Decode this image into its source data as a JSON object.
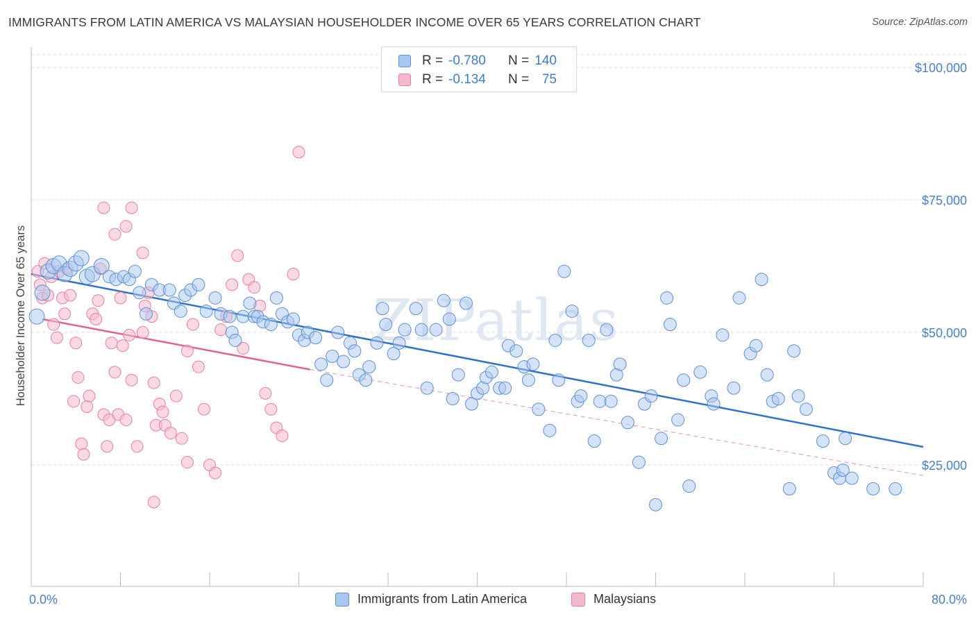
{
  "title": "IMMIGRANTS FROM LATIN AMERICA VS MALAYSIAN HOUSEHOLDER INCOME OVER 65 YEARS CORRELATION CHART",
  "source": "Source: ZipAtlas.com",
  "watermark": "ZIPatlas",
  "colors": {
    "blue_fill": "#a9c8f0",
    "blue_stroke": "#5b8fd6",
    "blue_line": "#2f6fcf",
    "pink_fill": "#f6b9cb",
    "pink_stroke": "#e87fa0",
    "pink_line": "#e0628d",
    "grid": "#dcdcdc",
    "tick_label": "#4a7fc8"
  },
  "legend_top": {
    "rows": [
      {
        "r_label": "R =",
        "r_value": "-0.780",
        "n_label": "N =",
        "n_value": "140",
        "series": "blue"
      },
      {
        "r_label": "R =",
        "r_value": "-0.134",
        "n_label": "N =",
        "n_value": "75",
        "series": "pink"
      }
    ]
  },
  "legend_bottom": {
    "items": [
      {
        "label": "Immigrants from Latin America",
        "series": "blue"
      },
      {
        "label": "Malaysians",
        "series": "pink"
      }
    ]
  },
  "chart_data": {
    "type": "scatter",
    "title": "IMMIGRANTS FROM LATIN AMERICA VS MALAYSIAN HOUSEHOLDER INCOME OVER 65 YEARS CORRELATION CHART",
    "xlabel": "",
    "ylabel": "Householder Income Over 65 years",
    "xlim": [
      0,
      80
    ],
    "ylim": [
      0,
      105000
    ],
    "x_tick_labels": [
      "0.0%",
      "80.0%"
    ],
    "y_ticks": [
      25000,
      50000,
      75000,
      100000
    ],
    "y_tick_labels": [
      "$25,000",
      "$50,000",
      "$75,000",
      "$100,000"
    ],
    "grid": true,
    "legend_placement": "top-center",
    "series": [
      {
        "name": "Immigrants from Latin America",
        "color": "blue",
        "trend": {
          "x": [
            0,
            80
          ],
          "y": [
            61000,
            28400
          ]
        },
        "points": [
          [
            0.5,
            53000
          ],
          [
            1.0,
            57500
          ],
          [
            1.5,
            61500
          ],
          [
            2.0,
            62500
          ],
          [
            2.5,
            63000
          ],
          [
            3.0,
            61000
          ],
          [
            3.5,
            62000
          ],
          [
            4.0,
            63000
          ],
          [
            4.5,
            64000
          ],
          [
            5.0,
            60500
          ],
          [
            5.5,
            61000
          ],
          [
            6.3,
            62500
          ],
          [
            7.0,
            60500
          ],
          [
            7.6,
            60000
          ],
          [
            8.3,
            60500
          ],
          [
            8.8,
            60000
          ],
          [
            9.3,
            61500
          ],
          [
            9.7,
            57500
          ],
          [
            10.3,
            53500
          ],
          [
            10.8,
            59000
          ],
          [
            11.5,
            58000
          ],
          [
            12.4,
            58000
          ],
          [
            12.8,
            55500
          ],
          [
            13.4,
            54000
          ],
          [
            13.8,
            57000
          ],
          [
            14.3,
            58000
          ],
          [
            15.0,
            59000
          ],
          [
            15.7,
            54000
          ],
          [
            16.5,
            56500
          ],
          [
            17.0,
            53500
          ],
          [
            17.8,
            53000
          ],
          [
            18.0,
            50000
          ],
          [
            18.3,
            48500
          ],
          [
            19.0,
            53000
          ],
          [
            19.6,
            55500
          ],
          [
            20.0,
            53000
          ],
          [
            20.3,
            53000
          ],
          [
            20.8,
            52000
          ],
          [
            21.5,
            51500
          ],
          [
            22.0,
            56500
          ],
          [
            22.5,
            53500
          ],
          [
            23.0,
            52000
          ],
          [
            23.5,
            52500
          ],
          [
            24.0,
            49500
          ],
          [
            24.5,
            48500
          ],
          [
            24.8,
            50000
          ],
          [
            25.5,
            49000
          ],
          [
            26.0,
            44000
          ],
          [
            26.5,
            41000
          ],
          [
            27.0,
            45500
          ],
          [
            27.5,
            50000
          ],
          [
            28.0,
            44500
          ],
          [
            28.6,
            48000
          ],
          [
            29.0,
            46500
          ],
          [
            29.4,
            42000
          ],
          [
            30.0,
            41000
          ],
          [
            30.3,
            43500
          ],
          [
            31.0,
            48000
          ],
          [
            31.5,
            54500
          ],
          [
            31.8,
            51500
          ],
          [
            32.5,
            46000
          ],
          [
            33.0,
            48000
          ],
          [
            33.5,
            50500
          ],
          [
            34.5,
            54500
          ],
          [
            35.0,
            50500
          ],
          [
            35.5,
            39500
          ],
          [
            36.3,
            50500
          ],
          [
            37.0,
            56000
          ],
          [
            37.5,
            52500
          ],
          [
            37.8,
            37500
          ],
          [
            38.3,
            42000
          ],
          [
            39.0,
            55500
          ],
          [
            39.5,
            36500
          ],
          [
            40.0,
            38500
          ],
          [
            40.5,
            39500
          ],
          [
            40.8,
            41500
          ],
          [
            41.3,
            42500
          ],
          [
            42.0,
            39500
          ],
          [
            42.5,
            39500
          ],
          [
            42.8,
            47500
          ],
          [
            43.5,
            46500
          ],
          [
            44.2,
            43500
          ],
          [
            44.6,
            41000
          ],
          [
            45.0,
            44000
          ],
          [
            45.5,
            35500
          ],
          [
            46.5,
            31500
          ],
          [
            47.0,
            48500
          ],
          [
            47.3,
            41000
          ],
          [
            47.8,
            61500
          ],
          [
            48.5,
            54000
          ],
          [
            49.0,
            37000
          ],
          [
            49.3,
            38000
          ],
          [
            50.0,
            48500
          ],
          [
            50.5,
            29500
          ],
          [
            51.0,
            37000
          ],
          [
            51.6,
            50500
          ],
          [
            52.0,
            37000
          ],
          [
            52.5,
            42000
          ],
          [
            52.8,
            44000
          ],
          [
            53.5,
            33000
          ],
          [
            54.5,
            25500
          ],
          [
            55.0,
            36500
          ],
          [
            55.6,
            38000
          ],
          [
            56.0,
            17500
          ],
          [
            56.5,
            30000
          ],
          [
            57.0,
            56500
          ],
          [
            57.3,
            51500
          ],
          [
            58.0,
            33500
          ],
          [
            58.5,
            41000
          ],
          [
            59.0,
            21000
          ],
          [
            60.0,
            42500
          ],
          [
            61.0,
            38000
          ],
          [
            61.2,
            36500
          ],
          [
            62.0,
            49500
          ],
          [
            63.0,
            39500
          ],
          [
            63.5,
            56500
          ],
          [
            64.5,
            46000
          ],
          [
            65.0,
            47500
          ],
          [
            65.5,
            60000
          ],
          [
            66.0,
            42000
          ],
          [
            66.5,
            37000
          ],
          [
            67.0,
            37500
          ],
          [
            68.0,
            20500
          ],
          [
            68.4,
            46500
          ],
          [
            68.8,
            38000
          ],
          [
            69.5,
            35500
          ],
          [
            71.0,
            29500
          ],
          [
            72.0,
            23500
          ],
          [
            72.5,
            22500
          ],
          [
            72.8,
            24000
          ],
          [
            73.0,
            30000
          ],
          [
            73.6,
            22500
          ],
          [
            75.5,
            20500
          ],
          [
            77.5,
            20500
          ]
        ]
      },
      {
        "name": "Malaysians",
        "color": "pink",
        "trend": {
          "x": [
            1,
            25
          ],
          "y": [
            52500,
            43000
          ],
          "dashed_to": {
            "x": 80,
            "y": 23000
          }
        },
        "points": [
          [
            0.6,
            61500
          ],
          [
            0.8,
            59000
          ],
          [
            1.0,
            56500
          ],
          [
            1.2,
            63000
          ],
          [
            1.5,
            57000
          ],
          [
            1.8,
            60500
          ],
          [
            2.0,
            51500
          ],
          [
            2.3,
            49000
          ],
          [
            2.5,
            61500
          ],
          [
            2.8,
            56500
          ],
          [
            3.0,
            53500
          ],
          [
            3.2,
            62000
          ],
          [
            3.5,
            57000
          ],
          [
            3.8,
            37000
          ],
          [
            4.0,
            48000
          ],
          [
            4.2,
            41500
          ],
          [
            4.5,
            29000
          ],
          [
            4.7,
            27000
          ],
          [
            5.0,
            36000
          ],
          [
            5.2,
            38000
          ],
          [
            5.5,
            53500
          ],
          [
            5.8,
            52500
          ],
          [
            6.0,
            56000
          ],
          [
            6.2,
            62000
          ],
          [
            6.5,
            34500
          ],
          [
            6.8,
            28500
          ],
          [
            7.0,
            33500
          ],
          [
            7.2,
            48000
          ],
          [
            7.5,
            42500
          ],
          [
            7.8,
            34500
          ],
          [
            8.0,
            56500
          ],
          [
            8.2,
            47500
          ],
          [
            8.5,
            33500
          ],
          [
            8.8,
            49500
          ],
          [
            9.0,
            41000
          ],
          [
            9.5,
            28500
          ],
          [
            10.0,
            50000
          ],
          [
            10.2,
            55000
          ],
          [
            10.5,
            57500
          ],
          [
            10.8,
            53000
          ],
          [
            11.0,
            40500
          ],
          [
            11.2,
            32500
          ],
          [
            11.5,
            36500
          ],
          [
            11.8,
            35000
          ],
          [
            12.0,
            32500
          ],
          [
            12.5,
            31000
          ],
          [
            13.0,
            38000
          ],
          [
            13.5,
            30000
          ],
          [
            14.0,
            46500
          ],
          [
            14.5,
            51500
          ],
          [
            15.0,
            43500
          ],
          [
            15.5,
            35500
          ],
          [
            16.0,
            25000
          ],
          [
            16.5,
            23500
          ],
          [
            17.0,
            50500
          ],
          [
            17.5,
            53000
          ],
          [
            18.0,
            59000
          ],
          [
            18.5,
            64500
          ],
          [
            19.0,
            47000
          ],
          [
            19.5,
            60000
          ],
          [
            20.0,
            58500
          ],
          [
            20.5,
            55000
          ],
          [
            21.0,
            38500
          ],
          [
            21.5,
            35500
          ],
          [
            22.0,
            32000
          ],
          [
            22.5,
            30500
          ],
          [
            23.5,
            61000
          ],
          [
            24.0,
            84000
          ],
          [
            6.5,
            73500
          ],
          [
            7.5,
            68500
          ],
          [
            9.0,
            73500
          ],
          [
            8.5,
            70000
          ],
          [
            10.0,
            65000
          ],
          [
            14.0,
            25500
          ],
          [
            11.0,
            18000
          ]
        ]
      }
    ]
  }
}
